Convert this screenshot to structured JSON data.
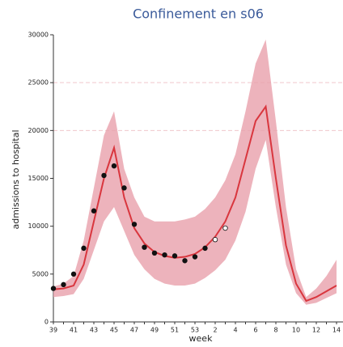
{
  "chart_data": {
    "type": "line",
    "title": "Confinement en s06",
    "xlabel": "week",
    "ylabel": "admissions to hospital",
    "categories": [
      "39",
      null,
      "41",
      null,
      "43",
      null,
      "45",
      null,
      "47",
      null,
      "49",
      null,
      "51",
      null,
      "53",
      null,
      "2",
      null,
      "4",
      null,
      "6",
      null,
      "8",
      null,
      "10",
      null,
      "12",
      null,
      "14"
    ],
    "ylim": [
      0,
      30000
    ],
    "yticks": [
      0,
      5000,
      10000,
      15000,
      20000,
      25000,
      30000
    ],
    "grid_lines": [
      20000,
      25000
    ],
    "highlight": [
      "6",
      "9"
    ],
    "band": {
      "color": "#e8a0ab",
      "low": [
        2600,
        2700,
        2900,
        4500,
        7500,
        10500,
        12000,
        9500,
        7000,
        5500,
        4500,
        4000,
        3800,
        3800,
        4000,
        4600,
        5400,
        6500,
        8500,
        11500,
        16000,
        19000,
        12000,
        6000,
        3000,
        1800,
        2000,
        2500,
        3000
      ],
      "high": [
        3700,
        4000,
        4800,
        8500,
        14000,
        19500,
        22000,
        16000,
        13000,
        11000,
        10500,
        10500,
        10500,
        10700,
        11000,
        11800,
        13000,
        14800,
        17500,
        22000,
        27000,
        29500,
        21000,
        12000,
        5500,
        2600,
        3500,
        4800,
        6500
      ]
    },
    "model": {
      "color": "#d9363e",
      "values": [
        3400,
        3500,
        3800,
        6000,
        10500,
        15000,
        18200,
        13000,
        9800,
        8200,
        7300,
        6900,
        6700,
        6800,
        7100,
        7800,
        8900,
        10500,
        13000,
        17000,
        21000,
        22500,
        15000,
        8000,
        4000,
        2200,
        2600,
        3200,
        3800
      ]
    },
    "observed": {
      "color": "#111111",
      "values": [
        3500,
        3900,
        5000,
        7700,
        11600,
        15300,
        16300,
        14000,
        10200,
        7800,
        7200,
        7000,
        6900,
        6400,
        6800,
        7700,
        null,
        null,
        null,
        null,
        null,
        null,
        null,
        null,
        null,
        null,
        null,
        null,
        null
      ]
    },
    "observed_recent": {
      "color": "#ffffff",
      "values": [
        null,
        null,
        null,
        null,
        null,
        null,
        null,
        null,
        null,
        null,
        null,
        null,
        null,
        null,
        null,
        null,
        8600,
        9800,
        null,
        null,
        null,
        null,
        null,
        null,
        null,
        null,
        null,
        null,
        null
      ]
    }
  }
}
